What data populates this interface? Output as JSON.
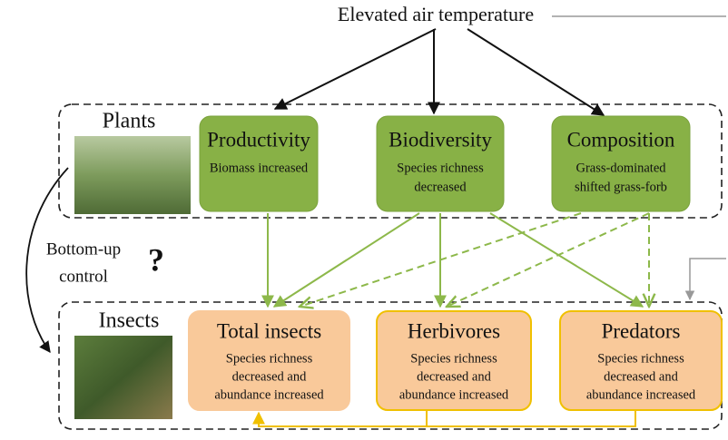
{
  "top": "Elevated air temperature",
  "groups": [
    {
      "label": "Plants"
    },
    {
      "label": "Insects"
    }
  ],
  "plant_nodes": [
    {
      "title": "Productivity",
      "lines": [
        "Biomass increased"
      ]
    },
    {
      "title": "Biodiversity",
      "lines": [
        "Species richness",
        "decreased"
      ]
    },
    {
      "title": "Composition",
      "lines": [
        "Grass-dominated",
        "shifted grass-forb"
      ]
    }
  ],
  "insect_nodes": [
    {
      "title": "Total insects",
      "lines": [
        "Species richness",
        "decreased and",
        "abundance increased"
      ]
    },
    {
      "title": "Herbivores",
      "lines": [
        "Species richness",
        "decreased and",
        "abundance increased"
      ]
    },
    {
      "title": "Predators",
      "lines": [
        "Species richness",
        "decreased and",
        "abundance increased"
      ]
    }
  ],
  "side": {
    "lines": [
      "Bottom-up",
      "control"
    ],
    "mark": "?"
  }
}
